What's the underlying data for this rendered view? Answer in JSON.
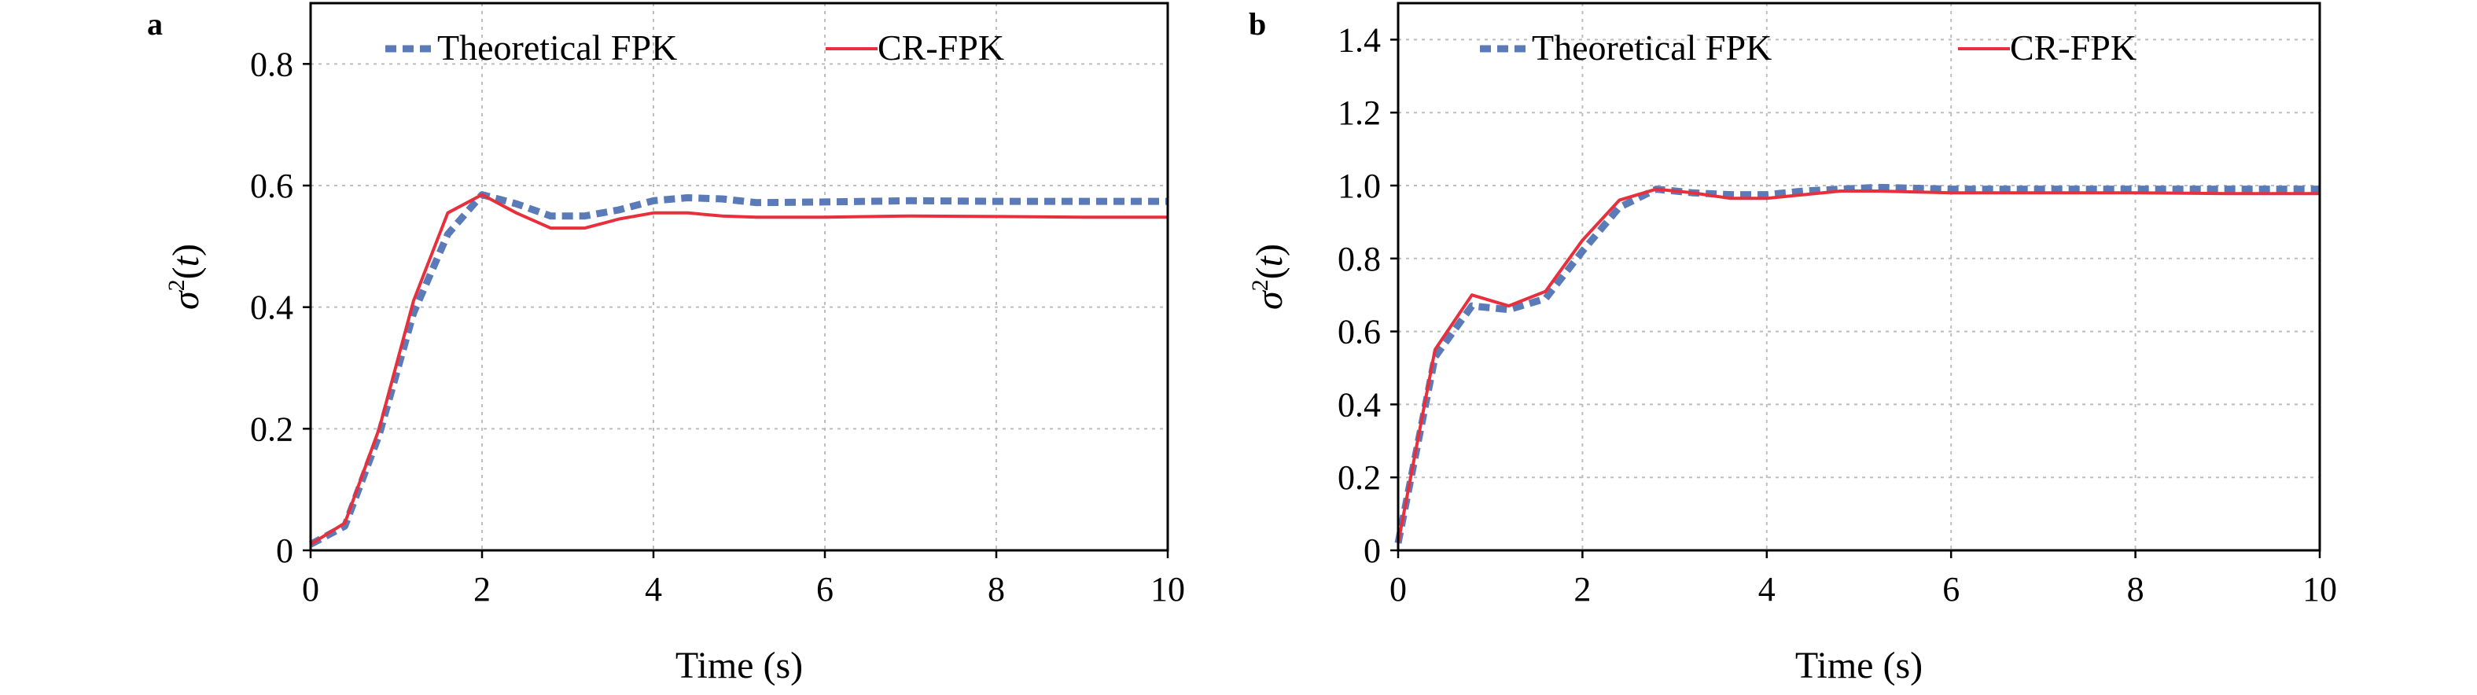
{
  "chart_data": [
    {
      "panel": "a",
      "type": "line",
      "xlabel": "Time (s)",
      "ylabel": "σ2(t)",
      "xlim": [
        0,
        10
      ],
      "ylim": [
        0,
        0.9
      ],
      "xticks": [
        "0",
        "2",
        "4",
        "6",
        "8",
        "10"
      ],
      "yticks": [
        "0",
        "0.2",
        "0.4",
        "0.6",
        "0.8"
      ],
      "grid": true,
      "legend_position": "top",
      "series": [
        {
          "name": "Theoretical FPK",
          "style": "dashed",
          "color": "#5b7bb8",
          "x": [
            0,
            0.4,
            0.8,
            1.2,
            1.6,
            2.0,
            2.4,
            2.8,
            3.2,
            3.6,
            4.0,
            4.4,
            4.8,
            5.2,
            6.0,
            7.0,
            8.0,
            9.0,
            10.0
          ],
          "y": [
            0.01,
            0.04,
            0.19,
            0.39,
            0.52,
            0.585,
            0.57,
            0.55,
            0.55,
            0.56,
            0.575,
            0.58,
            0.578,
            0.572,
            0.573,
            0.575,
            0.574,
            0.574,
            0.574
          ]
        },
        {
          "name": "CR-FPK",
          "style": "solid",
          "color": "#e8303c",
          "x": [
            0,
            0.4,
            0.8,
            1.2,
            1.6,
            2.0,
            2.4,
            2.8,
            3.2,
            3.6,
            4.0,
            4.4,
            4.8,
            5.2,
            6.0,
            7.0,
            8.0,
            9.0,
            10.0
          ],
          "y": [
            0.01,
            0.045,
            0.2,
            0.41,
            0.555,
            0.585,
            0.555,
            0.53,
            0.53,
            0.545,
            0.555,
            0.555,
            0.55,
            0.548,
            0.548,
            0.55,
            0.549,
            0.548,
            0.548
          ]
        }
      ]
    },
    {
      "panel": "b",
      "type": "line",
      "xlabel": "Time (s)",
      "ylabel": "σ2(t)",
      "xlim": [
        0,
        10
      ],
      "ylim": [
        0,
        1.5
      ],
      "xticks": [
        "0",
        "2",
        "4",
        "6",
        "8",
        "10"
      ],
      "yticks": [
        "0",
        "0.2",
        "0.4",
        "0.6",
        "0.8",
        "1.0",
        "1.2",
        "1.4"
      ],
      "grid": true,
      "legend_position": "top",
      "series": [
        {
          "name": "Theoretical FPK",
          "style": "dashed",
          "color": "#5b7bb8",
          "x": [
            0,
            0.4,
            0.8,
            1.2,
            1.6,
            2.0,
            2.4,
            2.8,
            3.2,
            3.6,
            4.0,
            4.4,
            4.8,
            5.2,
            6.0,
            7.0,
            8.0,
            9.0,
            10.0
          ],
          "y": [
            0.02,
            0.53,
            0.67,
            0.66,
            0.69,
            0.82,
            0.94,
            0.99,
            0.98,
            0.975,
            0.975,
            0.985,
            0.99,
            0.995,
            0.99,
            0.99,
            0.99,
            0.99,
            0.99
          ]
        },
        {
          "name": "CR-FPK",
          "style": "solid",
          "color": "#e8303c",
          "x": [
            0,
            0.4,
            0.8,
            1.2,
            1.6,
            2.0,
            2.4,
            2.8,
            3.2,
            3.6,
            4.0,
            4.4,
            4.8,
            5.2,
            6.0,
            7.0,
            8.0,
            9.0,
            10.0
          ],
          "y": [
            0.02,
            0.55,
            0.7,
            0.67,
            0.71,
            0.85,
            0.96,
            0.99,
            0.98,
            0.965,
            0.965,
            0.975,
            0.985,
            0.985,
            0.98,
            0.98,
            0.98,
            0.978,
            0.978
          ]
        }
      ]
    }
  ]
}
